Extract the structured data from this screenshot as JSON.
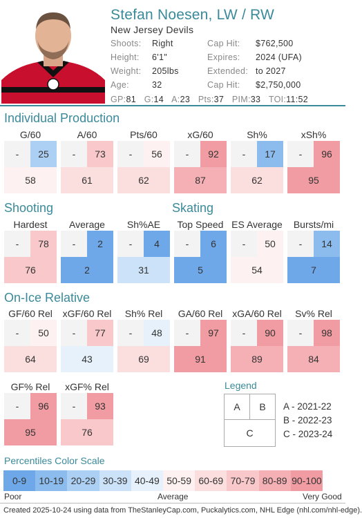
{
  "player": {
    "name": "Stefan Noesen, LW / RW",
    "team": "New Jersey Devils",
    "info": [
      {
        "k": "Shoots:",
        "v": "Right"
      },
      {
        "k": "Height:",
        "v": "6'1\""
      },
      {
        "k": "Weight:",
        "v": "205lbs"
      },
      {
        "k": "Age:",
        "v": "32"
      }
    ],
    "contract": [
      {
        "k": "Cap Hit:",
        "v": "$762,500"
      },
      {
        "k": "Expires:",
        "v": "2024 (UFA)"
      },
      {
        "k": "Extended:",
        "v": "to 2027"
      },
      {
        "k": "Cap Hit:",
        "v": "$2,750,000"
      }
    ],
    "stats": [
      {
        "k": "GP:",
        "v": "81"
      },
      {
        "k": "G:",
        "v": "14"
      },
      {
        "k": "A:",
        "v": "23"
      },
      {
        "k": "Pts:",
        "v": "37"
      },
      {
        "k": "PIM:",
        "v": "33"
      },
      {
        "k": "TOI:",
        "v": "11:52"
      }
    ]
  },
  "sections": {
    "individual": "Individual Production",
    "shooting": "Shooting",
    "skating": "Skating",
    "onice": "On-Ice Relative",
    "legend": "Legend",
    "scale": "Percentiles Color Scale"
  },
  "individual": [
    {
      "label": "G/60",
      "a": "-",
      "b": "25",
      "c": "58"
    },
    {
      "label": "A/60",
      "a": "-",
      "b": "73",
      "c": "61"
    },
    {
      "label": "Pts/60",
      "a": "-",
      "b": "56",
      "c": "62"
    },
    {
      "label": "xG/60",
      "a": "-",
      "b": "92",
      "c": "87"
    },
    {
      "label": "Sh%",
      "a": "-",
      "b": "17",
      "c": "62"
    },
    {
      "label": "xSh%",
      "a": "-",
      "b": "96",
      "c": "95"
    }
  ],
  "shooting": [
    {
      "label": "Hardest",
      "a": "-",
      "b": "78",
      "c": "76"
    },
    {
      "label": "Average",
      "a": "-",
      "b": "2",
      "c": "2"
    },
    {
      "label": "Sh%AE",
      "a": "-",
      "b": "4",
      "c": "31"
    }
  ],
  "skating": [
    {
      "label": "Top Speed",
      "a": "-",
      "b": "6",
      "c": "5"
    },
    {
      "label": "ES Average",
      "a": "-",
      "b": "50",
      "c": "54"
    },
    {
      "label": "Bursts/mi",
      "a": "-",
      "b": "14",
      "c": "7"
    }
  ],
  "onice": [
    {
      "label": "GF/60 Rel",
      "a": "-",
      "b": "50",
      "c": "64"
    },
    {
      "label": "xGF/60 Rel",
      "a": "-",
      "b": "77",
      "c": "43"
    },
    {
      "label": "Sh% Rel",
      "a": "-",
      "b": "48",
      "c": "69"
    },
    {
      "label": "GA/60 Rel",
      "a": "-",
      "b": "97",
      "c": "91"
    },
    {
      "label": "xGA/60 Rel",
      "a": "-",
      "b": "90",
      "c": "89"
    },
    {
      "label": "Sv% Rel",
      "a": "-",
      "b": "98",
      "c": "84"
    }
  ],
  "onice2": [
    {
      "label": "GF% Rel",
      "a": "-",
      "b": "96",
      "c": "95"
    },
    {
      "label": "xGF% Rel",
      "a": "-",
      "b": "93",
      "c": "76"
    }
  ],
  "legend": {
    "box_a": "A",
    "box_b": "B",
    "box_c": "C",
    "lines": [
      "A - 2021-22",
      "B - 2022-23",
      "C - 2023-24"
    ]
  },
  "scale": {
    "bins": [
      {
        "label": "0-9",
        "color": "#6ea8e8"
      },
      {
        "label": "10-19",
        "color": "#8cbcee"
      },
      {
        "label": "20-29",
        "color": "#acd0f3"
      },
      {
        "label": "30-39",
        "color": "#cce2f8"
      },
      {
        "label": "40-49",
        "color": "#e6f1fb"
      },
      {
        "label": "50-59",
        "color": "#fdf1f1"
      },
      {
        "label": "60-69",
        "color": "#fbdede"
      },
      {
        "label": "70-79",
        "color": "#f8c8ca"
      },
      {
        "label": "80-89",
        "color": "#f4b0b4"
      },
      {
        "label": "90-100",
        "color": "#f09ca2"
      }
    ],
    "poor": "Poor",
    "average": "Average",
    "very_good": "Very Good"
  },
  "footer": "Created 2025-10-24 using data from TheStanleyCap.com, Puckalytics.com, NHL Edge (nhl.com/nhl-edge)."
}
